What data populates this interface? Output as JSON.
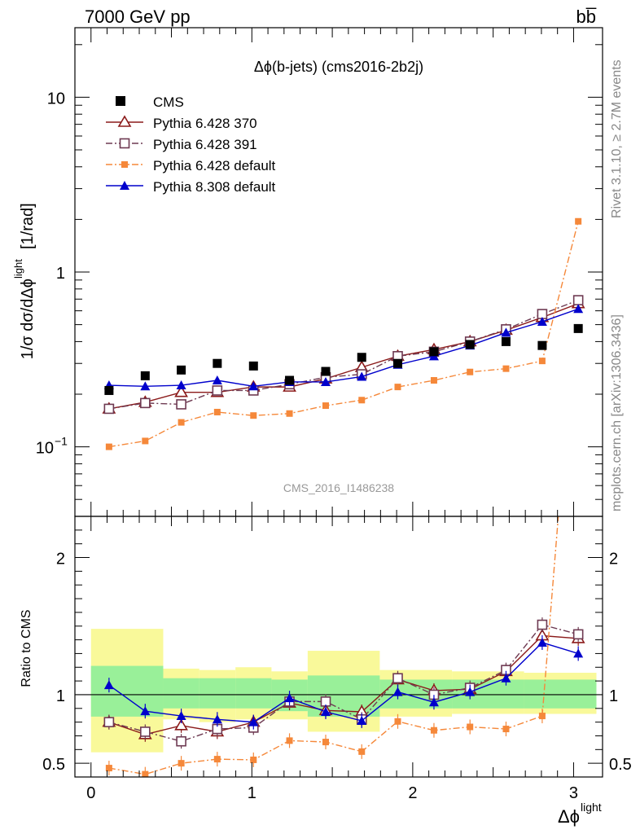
{
  "header": {
    "left": "7000 GeV pp",
    "right": "bb̅"
  },
  "side_texts": {
    "rivet": "Rivet 3.1.10, ≥ 2.7M events",
    "mcplots": "mcplots.cern.ch [arXiv:1306.3436]"
  },
  "chart_data": {
    "type": "line",
    "title": "Δϕ(b-jets) (cms2016-2b2j)",
    "watermark": "CMS_2016_I1486238",
    "ylabel_main": "1/σ dσ/dΔϕ",
    "ylabel_main_sup": "light",
    "ylabel_main_unit": "[1/rad]",
    "ylabel_ratio": "Ratio to CMS",
    "xlabel": "Δϕ",
    "xlabel_sup": "light",
    "xlim": [
      -0.1,
      3.18
    ],
    "ylim_main": [
      0.04,
      25
    ],
    "ylog_main": true,
    "ylim_ratio": [
      0.4,
      2.3
    ],
    "main_ytick_labels": [
      "10−1",
      "1",
      "10"
    ],
    "ratio_ytick_labels": [
      "0.5",
      "1",
      "2"
    ],
    "xtick_labels": [
      "0",
      "1",
      "2",
      "3"
    ],
    "x": [
      0.112,
      0.337,
      0.561,
      0.785,
      1.01,
      1.234,
      1.459,
      1.683,
      1.907,
      2.132,
      2.356,
      2.58,
      2.805,
      3.029
    ],
    "data": {
      "name": "CMS",
      "values": [
        0.21,
        0.255,
        0.275,
        0.3,
        0.29,
        0.24,
        0.27,
        0.325,
        0.3,
        0.35,
        0.385,
        0.4,
        0.38,
        0.475
      ]
    },
    "series": [
      {
        "name": "Pythia 6.428 370",
        "color": "#8b1a1a",
        "dash": "solid",
        "marker": "triangle-open",
        "values": [
          0.165,
          0.18,
          0.205,
          0.205,
          0.22,
          0.22,
          0.245,
          0.285,
          0.33,
          0.36,
          0.4,
          0.465,
          0.55,
          0.66
        ],
        "ratio": [
          0.8,
          0.71,
          0.775,
          0.73,
          0.8,
          0.94,
          0.885,
          0.875,
          1.11,
          1.03,
          1.04,
          1.17,
          1.43,
          1.41
        ]
      },
      {
        "name": "Pythia 6.428 391",
        "color": "#6e3a52",
        "dash": "dashdot",
        "marker": "square-open",
        "values": [
          0.165,
          0.178,
          0.175,
          0.21,
          0.21,
          0.228,
          0.25,
          0.26,
          0.33,
          0.35,
          0.4,
          0.47,
          0.575,
          0.69
        ],
        "ratio": [
          0.8,
          0.73,
          0.66,
          0.75,
          0.76,
          0.95,
          0.95,
          0.82,
          1.12,
          1.0,
          1.05,
          1.18,
          1.51,
          1.44
        ]
      },
      {
        "name": "Pythia 6.428 default",
        "color": "#f5883a",
        "dash": "dashdot",
        "marker": "square-filled",
        "values": [
          0.1,
          0.108,
          0.138,
          0.158,
          0.151,
          0.155,
          0.172,
          0.185,
          0.22,
          0.24,
          0.268,
          0.28,
          0.31,
          1.95
        ],
        "ratio": [
          0.465,
          0.42,
          0.5,
          0.53,
          0.525,
          0.665,
          0.655,
          0.585,
          0.805,
          0.74,
          0.765,
          0.75,
          0.845,
          4.1
        ]
      },
      {
        "name": "Pythia 8.308 default",
        "color": "#0000cc",
        "dash": "solid",
        "marker": "triangle-filled",
        "values": [
          0.225,
          0.222,
          0.225,
          0.24,
          0.222,
          0.235,
          0.235,
          0.252,
          0.295,
          0.33,
          0.38,
          0.45,
          0.52,
          0.615
        ],
        "ratio": [
          1.07,
          0.88,
          0.845,
          0.82,
          0.8,
          0.975,
          0.875,
          0.81,
          1.02,
          0.945,
          1.02,
          1.12,
          1.38,
          1.3
        ]
      }
    ],
    "ratio_bands": {
      "bin_edges": [
        0.0,
        0.449,
        0.673,
        0.898,
        1.122,
        1.347,
        1.795,
        2.244,
        2.692,
        3.142
      ],
      "inner_lo": [
        0.84,
        0.9,
        0.9,
        0.9,
        0.88,
        0.84,
        0.9,
        0.9,
        0.9
      ],
      "inner_hi": [
        1.21,
        1.12,
        1.12,
        1.12,
        1.11,
        1.14,
        1.11,
        1.11,
        1.11
      ],
      "outer_lo": [
        0.58,
        0.82,
        0.8,
        0.82,
        0.82,
        0.73,
        0.84,
        0.86,
        0.86
      ],
      "outer_hi": [
        1.48,
        1.19,
        1.18,
        1.2,
        1.17,
        1.32,
        1.18,
        1.17,
        1.16
      ],
      "inner_color": "#99f099",
      "outer_color": "#f9f99a"
    }
  }
}
